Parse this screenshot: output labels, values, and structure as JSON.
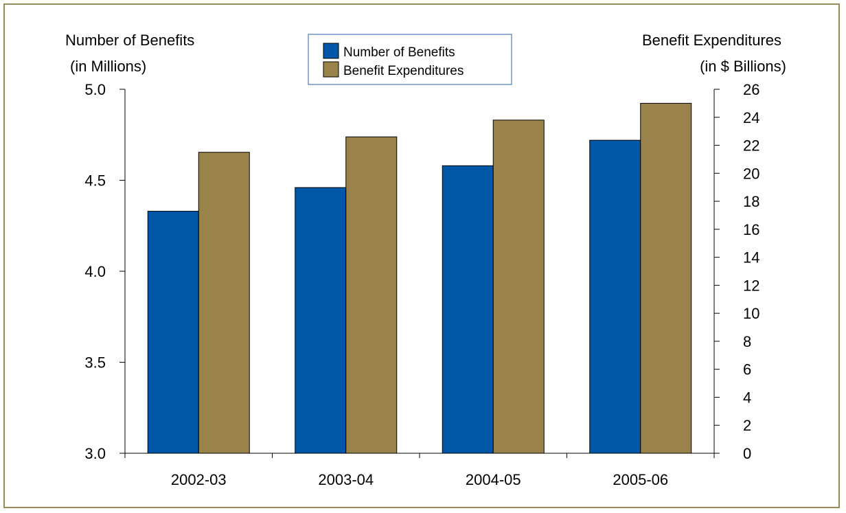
{
  "chart_data": {
    "type": "bar",
    "categories": [
      "2002-03",
      "2003-04",
      "2004-05",
      "2005-06"
    ],
    "series": [
      {
        "name": "Number of Benefits",
        "axis": "left",
        "color": "#0057a8",
        "values": [
          4.33,
          4.46,
          4.58,
          4.72
        ]
      },
      {
        "name": "Benefit Expenditures",
        "axis": "right",
        "color": "#99834b",
        "values": [
          21.5,
          22.6,
          23.8,
          25.0
        ]
      }
    ],
    "left_axis": {
      "label_line1": "Number of Benefits",
      "label_line2": "(in Millions)",
      "ylim": [
        3.0,
        5.0
      ],
      "ticks": [
        "3.0",
        "3.5",
        "4.0",
        "4.5",
        "5.0"
      ]
    },
    "right_axis": {
      "label_line1": "Benefit Expenditures",
      "label_line2": "(in $ Billions)",
      "ylim": [
        0,
        26
      ],
      "ticks": [
        "0",
        "2",
        "4",
        "6",
        "8",
        "10",
        "12",
        "14",
        "16",
        "18",
        "20",
        "22",
        "24",
        "26"
      ]
    },
    "legend": {
      "placement": "top-center",
      "items": [
        "Number of Benefits",
        "Benefit Expenditures"
      ]
    },
    "grid": false
  }
}
